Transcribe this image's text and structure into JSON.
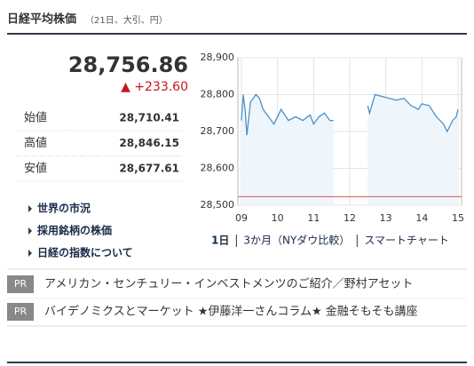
{
  "header": {
    "title": "日経平均株価",
    "subtitle": "（21日、大引、円）"
  },
  "quote": {
    "price": "28,756.86",
    "change": "▲ +233.60"
  },
  "stats": [
    {
      "label": "始値",
      "value": "28,710.41"
    },
    {
      "label": "高値",
      "value": "28,846.15"
    },
    {
      "label": "安値",
      "value": "28,677.61"
    }
  ],
  "links": [
    "世界の市況",
    "採用銘柄の株価",
    "日経の指数について"
  ],
  "chart_links": [
    "1日",
    "3か月（NYダウ比較）",
    "スマートチャート"
  ],
  "pr": [
    {
      "tag": "PR",
      "text": "アメリカン・センチュリー・インベストメンツのご紹介／野村アセット"
    },
    {
      "tag": "PR",
      "text": "バイデノミクスとマーケット ★伊藤洋一さんコラム★ 金融そもそも講座"
    }
  ],
  "chart_data": {
    "type": "area",
    "x": [
      9.0,
      9.05,
      9.1,
      9.15,
      9.25,
      9.4,
      9.5,
      9.6,
      9.75,
      9.9,
      10.0,
      10.1,
      10.2,
      10.3,
      10.5,
      10.7,
      10.9,
      11.0,
      11.15,
      11.3,
      11.45,
      11.55,
      12.0,
      12.5,
      12.55,
      12.7,
      12.9,
      13.1,
      13.3,
      13.5,
      13.7,
      13.9,
      14.0,
      14.2,
      14.4,
      14.6,
      14.7,
      14.85,
      14.95,
      15.0
    ],
    "values": [
      28730,
      28800,
      28760,
      28690,
      28780,
      28800,
      28790,
      28760,
      28740,
      28720,
      28740,
      28760,
      28745,
      28730,
      28740,
      28730,
      28745,
      28720,
      28740,
      28750,
      28730,
      28730,
      null,
      28770,
      28750,
      28800,
      28795,
      28790,
      28785,
      28790,
      28770,
      28760,
      28775,
      28770,
      28740,
      28720,
      28700,
      28730,
      28740,
      28760
    ],
    "color": "#4a90c8",
    "fill": "#eef6fc",
    "reference": 28523.26,
    "reference_color": "#e05050",
    "xlim": [
      9,
      15
    ],
    "ylim": [
      28500,
      28900
    ],
    "xticks": [
      {
        "value": 9,
        "label": "09"
      },
      10,
      11,
      12,
      13,
      14,
      15
    ],
    "yticks": [
      {
        "value": 28500,
        "label": "28,500"
      },
      {
        "value": 28600,
        "label": "28,600"
      },
      {
        "value": 28700,
        "label": "28,700"
      },
      {
        "value": 28800,
        "label": "28,800"
      },
      {
        "value": 28900,
        "label": "28,900"
      }
    ],
    "grid": true
  }
}
